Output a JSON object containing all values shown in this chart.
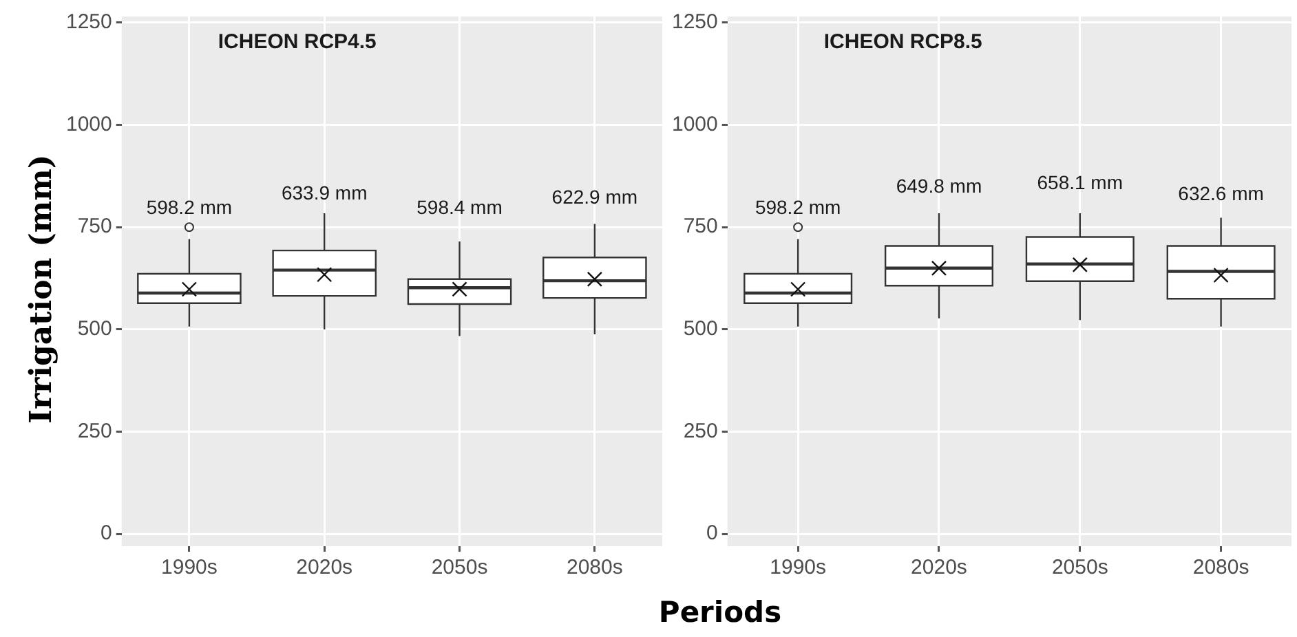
{
  "chart_data": [
    {
      "type": "box",
      "title": "ICHEON RCP4.5",
      "ylabel": "Irrigation (mm)",
      "xlabel": "Periods",
      "categories": [
        "1990s",
        "2020s",
        "2050s",
        "2080s"
      ],
      "boxes": [
        {
          "low": 507,
          "q1": 564,
          "median": 589,
          "q3": 636,
          "high": 721,
          "mean": 598.2,
          "outliers": [
            750
          ]
        },
        {
          "low": 500,
          "q1": 582,
          "median": 645,
          "q3": 693,
          "high": 784,
          "mean": 633.9
        },
        {
          "low": 484,
          "q1": 562,
          "median": 602,
          "q3": 623,
          "high": 715,
          "mean": 598.4
        },
        {
          "low": 488,
          "q1": 577,
          "median": 619,
          "q3": 676,
          "high": 758,
          "mean": 622.9
        }
      ],
      "annotations": [
        "598.2 mm",
        "633.9 mm",
        "598.4 mm",
        "622.9 mm"
      ],
      "ylim": [
        -30,
        1265
      ],
      "yticks": [
        0,
        250,
        500,
        750,
        1000,
        1250
      ],
      "grid": true
    },
    {
      "type": "box",
      "title": "ICHEON RCP8.5",
      "categories": [
        "1990s",
        "2020s",
        "2050s",
        "2080s"
      ],
      "boxes": [
        {
          "low": 507,
          "q1": 564,
          "median": 589,
          "q3": 636,
          "high": 721,
          "mean": 598.2,
          "outliers": [
            750
          ]
        },
        {
          "low": 527,
          "q1": 607,
          "median": 650,
          "q3": 704,
          "high": 784,
          "mean": 649.8
        },
        {
          "low": 523,
          "q1": 618,
          "median": 660,
          "q3": 726,
          "high": 784,
          "mean": 658.1
        },
        {
          "low": 507,
          "q1": 575,
          "median": 642,
          "q3": 704,
          "high": 773,
          "mean": 632.6
        }
      ],
      "annotations": [
        "598.2 mm",
        "649.8 mm",
        "658.1 mm",
        "632.6 mm"
      ],
      "ylim": [
        -30,
        1265
      ],
      "yticks": [
        0,
        250,
        500,
        750,
        1000,
        1250
      ],
      "grid": true
    }
  ]
}
